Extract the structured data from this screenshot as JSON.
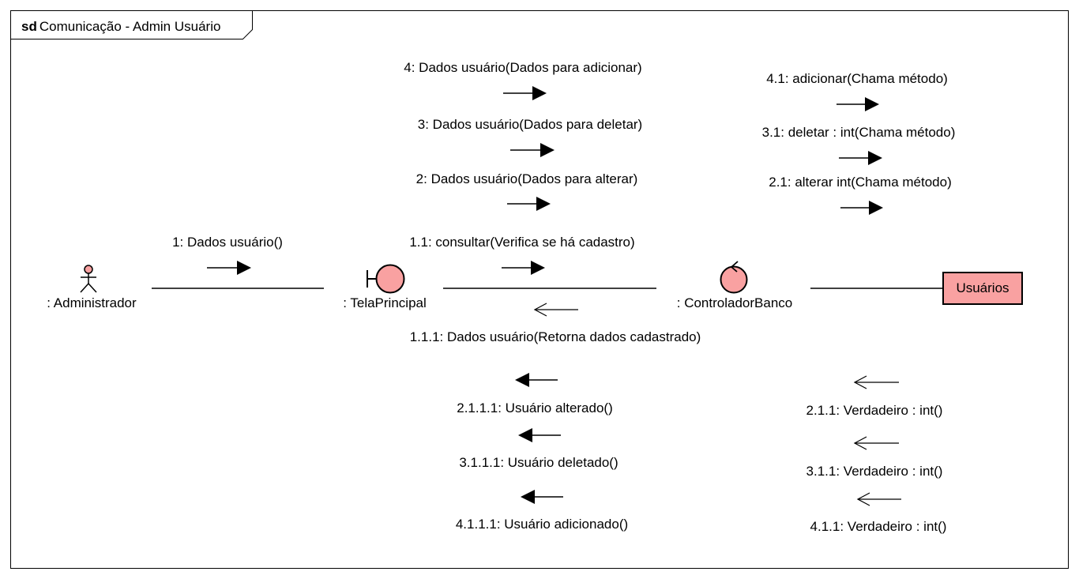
{
  "frame": {
    "keyword": "sd",
    "title": "Comunicação - Admin Usuário"
  },
  "colors": {
    "element_fill": "#f9a1a1",
    "stroke": "#000000",
    "background": "#ffffff"
  },
  "lifelines": {
    "administrador": ": Administrador",
    "tela": ": TelaPrincipal",
    "controlador": ": ControladorBanco",
    "usuarios": "Usuários"
  },
  "messages": {
    "m1": "1: Dados usuário()",
    "m1_1": "1.1: consultar(Verifica se há cadastro)",
    "m1_1_1": "1.1.1: Dados usuário(Retorna dados cadastrado)",
    "m2": "2: Dados usuário(Dados para alterar)",
    "m3": "3: Dados usuário(Dados para deletar)",
    "m4": "4: Dados usuário(Dados para adicionar)",
    "m2_1": "2.1: alterar  int(Chama método)",
    "m3_1": "3.1: deletar : int(Chama método)",
    "m4_1": "4.1: adicionar(Chama método)",
    "m2_1_1": "2.1.1: Verdadeiro : int()",
    "m3_1_1": "3.1.1: Verdadeiro : int()",
    "m4_1_1": "4.1.1: Verdadeiro : int()",
    "m2_1_1_1": "2.1.1.1: Usuário alterado()",
    "m3_1_1_1": "3.1.1.1: Usuário deletado()",
    "m4_1_1_1": "4.1.1.1: Usuário adicionado()"
  }
}
